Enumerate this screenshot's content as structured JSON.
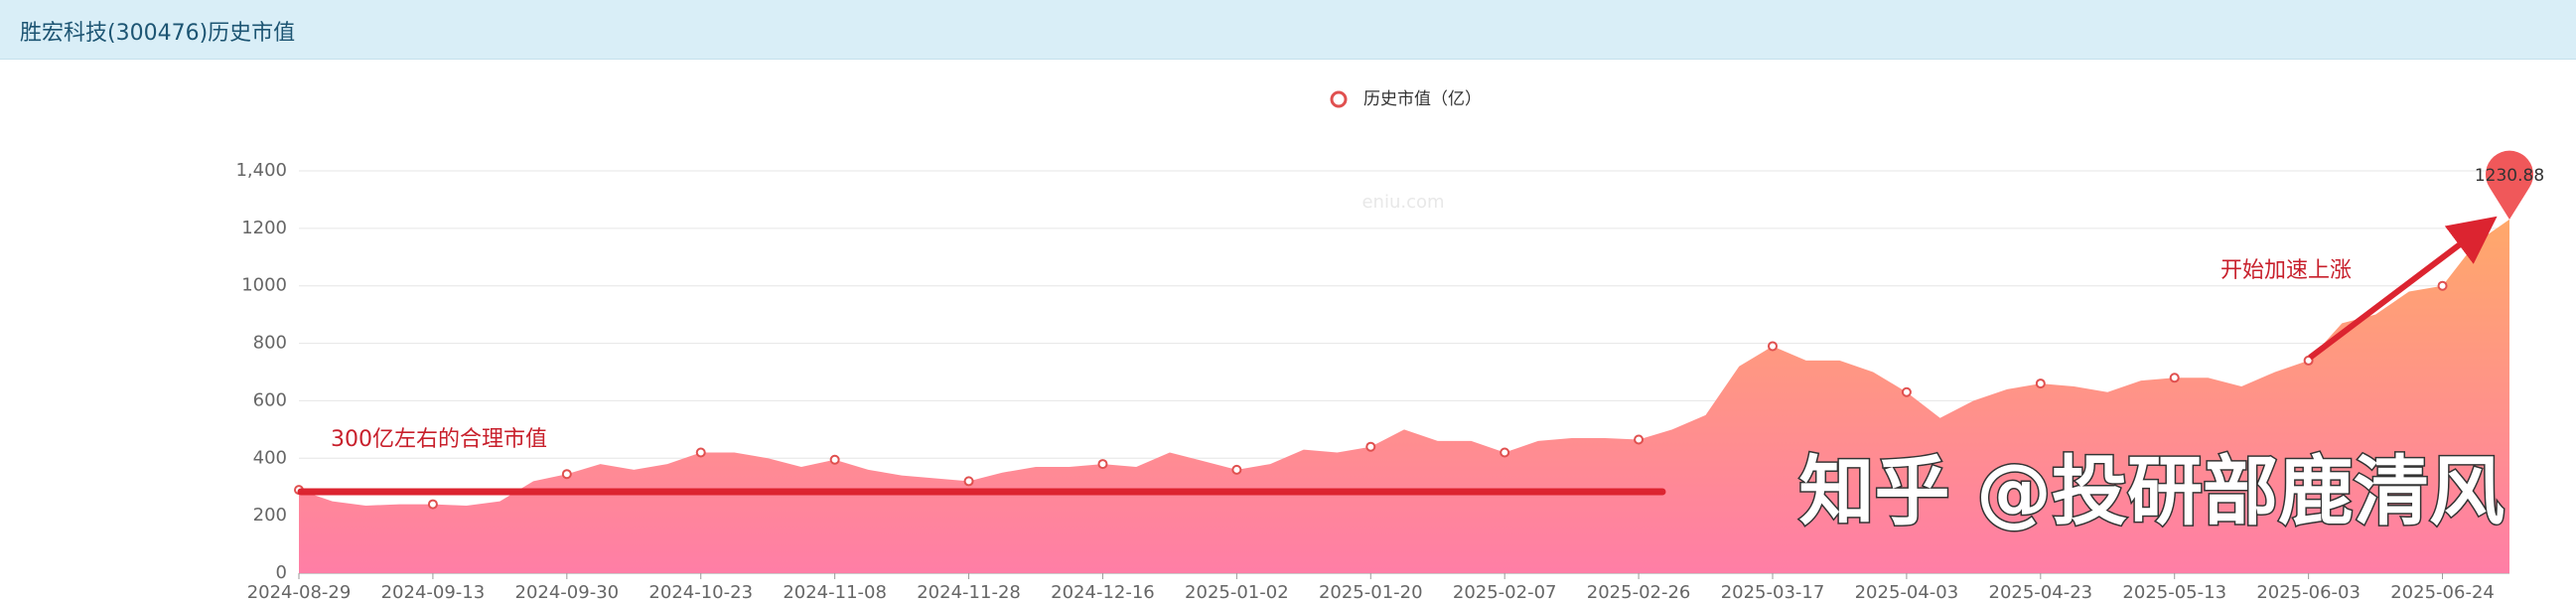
{
  "header": {
    "title": "胜宏科技(300476)历史市值"
  },
  "chart_data": {
    "type": "area",
    "legend": "历史市值（亿）",
    "watermark": "eniu.com",
    "categories": [
      "2024-08-29",
      null,
      null,
      null,
      "2024-09-13",
      null,
      null,
      null,
      "2024-09-30",
      null,
      null,
      null,
      "2024-10-23",
      null,
      null,
      null,
      "2024-11-08",
      null,
      null,
      null,
      "2024-11-28",
      null,
      null,
      null,
      "2024-12-16",
      null,
      null,
      null,
      "2025-01-02",
      null,
      null,
      null,
      "2025-01-20",
      null,
      null,
      null,
      "2025-02-07",
      null,
      null,
      null,
      "2025-02-26",
      null,
      null,
      null,
      "2025-03-17",
      null,
      null,
      null,
      "2025-04-03",
      null,
      null,
      null,
      "2025-04-23",
      null,
      null,
      null,
      "2025-05-13",
      null,
      null,
      null,
      "2025-06-03",
      null,
      null,
      null,
      "2025-06-24",
      null,
      null
    ],
    "series": [
      {
        "name": "历史市值（亿）",
        "color": "#e0504f",
        "values": [
          290,
          250,
          235,
          240,
          240,
          235,
          250,
          320,
          345,
          380,
          360,
          380,
          420,
          420,
          400,
          370,
          395,
          360,
          340,
          330,
          320,
          350,
          370,
          370,
          380,
          370,
          420,
          390,
          360,
          380,
          430,
          420,
          440,
          500,
          460,
          460,
          420,
          460,
          470,
          470,
          465,
          500,
          550,
          720,
          790,
          740,
          740,
          700,
          630,
          540,
          600,
          640,
          660,
          650,
          630,
          670,
          680,
          680,
          650,
          700,
          740,
          870,
          900,
          980,
          1000,
          1150,
          1230.88
        ]
      }
    ],
    "max_label": "1230.88",
    "ylim": [
      0,
      1400
    ],
    "yticks": [
      0,
      200,
      400,
      600,
      800,
      1000,
      1200,
      {
        "value": 1400,
        "label": "1,400"
      }
    ],
    "grid": true,
    "annotations": [
      "300亿左右的合理市值",
      "开始加速上涨",
      "知乎 @投研部鹿清风"
    ]
  }
}
